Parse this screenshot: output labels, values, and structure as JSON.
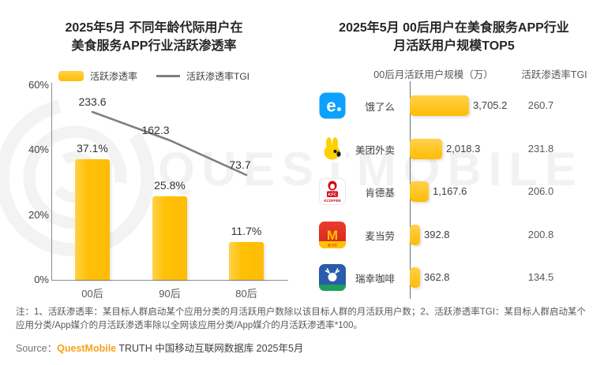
{
  "page": {
    "watermark_text": "QUESTMOBILE",
    "note_text": "注：1、活跃渗透率：某目标人群启动某个应用分类的月活跃用户数除以该目标人群的月活跃用户数；2、活跃渗透率TGI：某目标人群启动某个应用分类/App媒介的月活跃渗透率除以全网该应用分类/App媒介的月活跃渗透率*100。",
    "source_prefix": "Source：",
    "source_brand": "QuestMobile",
    "source_rest": " TRUTH 中国移动互联网数据库 2025年5月"
  },
  "colors": {
    "bar_yellow": "#FFC107",
    "tgi_line_gray": "#7f7f7f",
    "brand_orange": "#F5A31D",
    "axis_gray": "#8c8c8c"
  },
  "chart_data": [
    {
      "type": "bar",
      "title_lines": [
        "2025年5月 不同年龄代际用户在",
        "美食服务APP行业活跃渗透率"
      ],
      "legend": [
        "活跃渗透率",
        "活跃渗透率TGI"
      ],
      "categories": [
        "00后",
        "90后",
        "80后"
      ],
      "series": [
        {
          "name": "活跃渗透率",
          "type": "bar",
          "unit": "%",
          "values": [
            37.1,
            25.8,
            11.7
          ],
          "labels": [
            "37.1%",
            "25.8%",
            "11.7%"
          ]
        },
        {
          "name": "活跃渗透率TGI",
          "type": "line",
          "values": [
            233.6,
            162.3,
            73.7
          ],
          "labels": [
            "233.6",
            "162.3",
            "73.7"
          ]
        }
      ],
      "y_axis": {
        "ticks": [
          "60%",
          "40%",
          "20%",
          "0%"
        ],
        "min": 0,
        "max": 60,
        "grid": false
      },
      "legend_position": "top"
    },
    {
      "type": "bar",
      "orientation": "horizontal",
      "title_lines": [
        "2025年5月 00后用户在美食服务APP行业",
        "月活跃用户规模TOP5"
      ],
      "col_headers": [
        "00后月活跃用户规模（万）",
        "活跃渗透率TGI"
      ],
      "rows": [
        {
          "app": "饿了么",
          "icon": "eleme-icon",
          "mau": "3,705.2",
          "mau_value": 3705.2,
          "tgi": "260.7"
        },
        {
          "app": "美团外卖",
          "icon": "meituan-icon",
          "mau": "2,018.3",
          "mau_value": 2018.3,
          "tgi": "231.8"
        },
        {
          "app": "肯德基",
          "icon": "kfc-icon",
          "mau": "1,167.6",
          "mau_value": 1167.6,
          "tgi": "206.0"
        },
        {
          "app": "麦当劳",
          "icon": "mcdonalds-icon",
          "mau": "392.8",
          "mau_value": 392.8,
          "tgi": "200.8"
        },
        {
          "app": "瑞幸咖啡",
          "icon": "luckin-icon",
          "mau": "362.8",
          "mau_value": 362.8,
          "tgi": "134.5"
        }
      ]
    }
  ]
}
